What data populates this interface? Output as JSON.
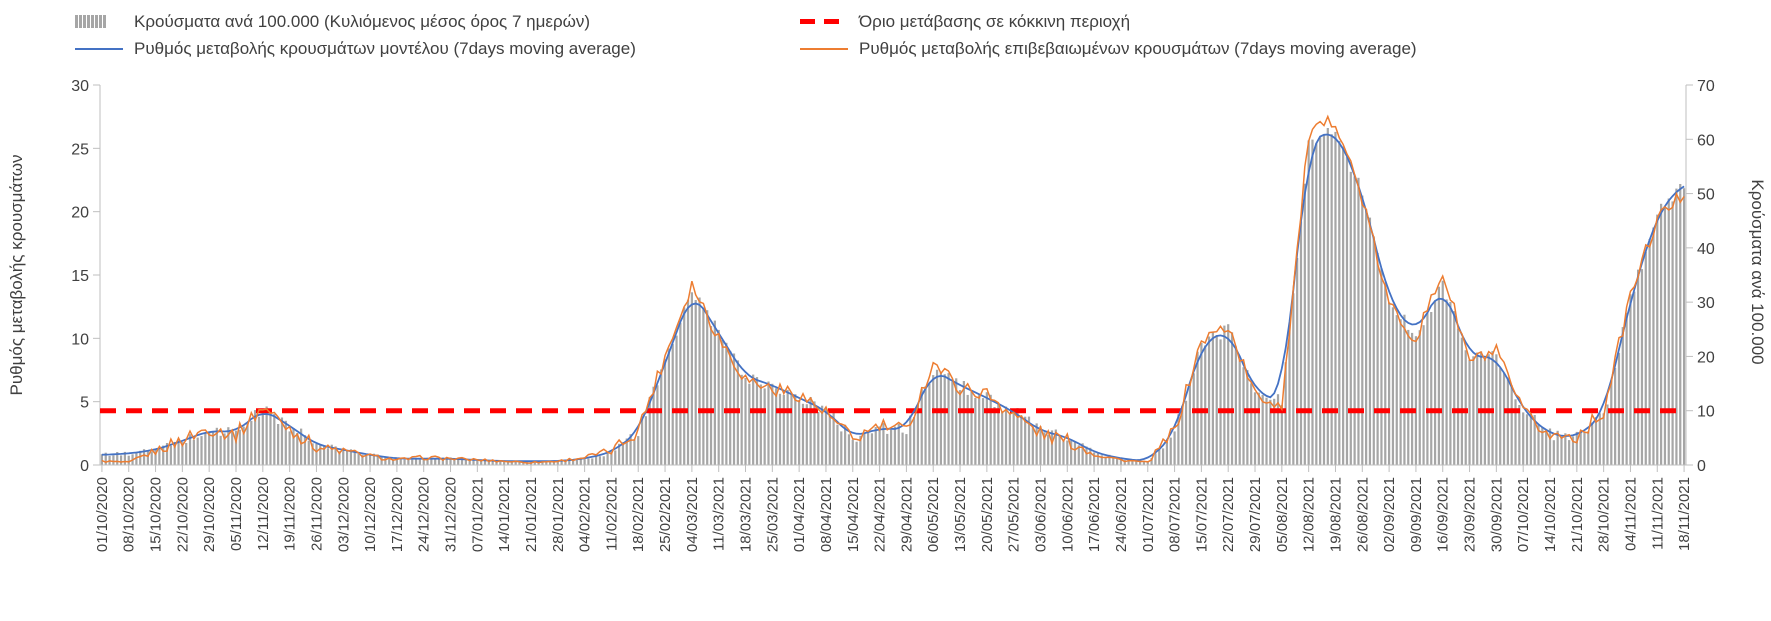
{
  "chart_data": {
    "type": "combo",
    "title": "",
    "x_tick_labels": [
      "01/10/2020",
      "08/10/2020",
      "15/10/2020",
      "22/10/2020",
      "29/10/2020",
      "05/11/2020",
      "12/11/2020",
      "19/11/2020",
      "26/11/2020",
      "03/12/2020",
      "10/12/2020",
      "17/12/2020",
      "24/12/2020",
      "31/12/2020",
      "07/01/2021",
      "14/01/2021",
      "21/01/2021",
      "28/01/2021",
      "04/02/2021",
      "11/02/2021",
      "18/02/2021",
      "25/02/2021",
      "04/03/2021",
      "11/03/2021",
      "18/03/2021",
      "25/03/2021",
      "01/04/2021",
      "08/04/2021",
      "15/04/2021",
      "22/04/2021",
      "29/04/2021",
      "06/05/2021",
      "13/05/2021",
      "20/05/2021",
      "27/05/2021",
      "03/06/2021",
      "10/06/2021",
      "17/06/2021",
      "24/06/2021",
      "01/07/2021",
      "08/07/2021",
      "15/07/2021",
      "22/07/2021",
      "29/07/2021",
      "05/08/2021",
      "12/08/2021",
      "19/08/2021",
      "26/08/2021",
      "02/09/2021",
      "09/09/2021",
      "16/09/2021",
      "23/09/2021",
      "30/09/2021",
      "07/10/2021",
      "14/10/2021",
      "21/10/2021",
      "28/10/2021",
      "04/11/2021",
      "11/11/2021",
      "18/11/2021"
    ],
    "left_axis": {
      "label": "Ρυθμός μεταβολής κρουσμάτων",
      "min": 0,
      "max": 30,
      "ticks": [
        0,
        5,
        10,
        15,
        20,
        25,
        30
      ]
    },
    "right_axis": {
      "label": "Κρούσματα ανά 100.000",
      "min": 0,
      "max": 70,
      "ticks": [
        0,
        10,
        20,
        30,
        40,
        50,
        60,
        70
      ]
    },
    "threshold": {
      "label": "Όριο μετάβασης σε κόκκινη περιοχή",
      "axis": "right",
      "value": 10,
      "color": "#ff0000",
      "style": "dashed"
    },
    "grid": "off",
    "legend_position": "top",
    "sampling_note": "values estimated at weekly x tick labels",
    "series": [
      {
        "name": "Κρούσματα ανά 100.000 (Κυλιόμενος μέσος όρος 7 ημερών)",
        "type": "bar",
        "axis": "right",
        "color": "#a6a6a6",
        "values": [
          1.9,
          2.1,
          2.8,
          4.4,
          6.3,
          6.1,
          10.3,
          7.2,
          3.7,
          2.8,
          1.9,
          1.2,
          1.2,
          1.2,
          0.9,
          0.7,
          0.7,
          0.7,
          1.2,
          2.3,
          6.1,
          18.7,
          32.2,
          24.3,
          16.3,
          14.7,
          12.4,
          10.0,
          5.1,
          6.8,
          6.5,
          17.5,
          14.7,
          12.4,
          9.8,
          6.3,
          5.1,
          2.3,
          1.2,
          0.7,
          5.8,
          22.2,
          25.0,
          13.5,
          11.7,
          59.5,
          61.8,
          50.2,
          30.3,
          24.0,
          33.4,
          19.8,
          20.1,
          10.0,
          5.6,
          5.1,
          9.3,
          30.3,
          46.2,
          52.0
        ]
      },
      {
        "name": "Ρυθμός μεταβολής κρουσμάτων μοντέλου (7days moving average)",
        "type": "line",
        "axis": "left",
        "color": "#4472c4",
        "values": [
          0.8,
          0.9,
          1.2,
          1.9,
          2.7,
          2.6,
          4.4,
          3.1,
          1.6,
          1.2,
          0.8,
          0.5,
          0.5,
          0.5,
          0.4,
          0.3,
          0.3,
          0.3,
          0.5,
          1.0,
          2.6,
          8.0,
          13.8,
          10.4,
          7.0,
          6.3,
          5.3,
          4.3,
          2.2,
          2.9,
          2.8,
          7.5,
          6.3,
          5.3,
          4.2,
          2.7,
          2.2,
          1.0,
          0.5,
          0.3,
          2.5,
          9.5,
          10.7,
          5.8,
          5.0,
          25.5,
          26.5,
          21.5,
          13.0,
          10.3,
          14.3,
          8.5,
          8.6,
          4.3,
          2.4,
          2.2,
          4.0,
          13.0,
          19.8,
          22.3
        ]
      },
      {
        "name": "Ρυθμός μεταβολής επιβεβαιωμένων κρουσμάτων (7days moving average)",
        "type": "line",
        "axis": "left",
        "color": "#ed7d31",
        "values": [
          0.3,
          0.2,
          1.1,
          2.0,
          2.9,
          2.4,
          4.6,
          2.9,
          1.4,
          1.1,
          0.7,
          0.4,
          0.6,
          0.5,
          0.4,
          0.3,
          0.2,
          0.3,
          0.6,
          1.1,
          2.8,
          8.6,
          14.3,
          10.1,
          6.8,
          6.0,
          5.6,
          4.1,
          2.0,
          3.1,
          2.7,
          8.1,
          6.1,
          5.6,
          4.0,
          2.5,
          1.9,
          0.9,
          0.4,
          0.2,
          2.7,
          9.8,
          11.0,
          5.5,
          4.8,
          26.0,
          27.3,
          21.0,
          12.6,
          10.0,
          15.2,
          8.2,
          8.9,
          4.1,
          2.3,
          2.3,
          4.2,
          13.4,
          19.4,
          21.5
        ]
      }
    ]
  }
}
